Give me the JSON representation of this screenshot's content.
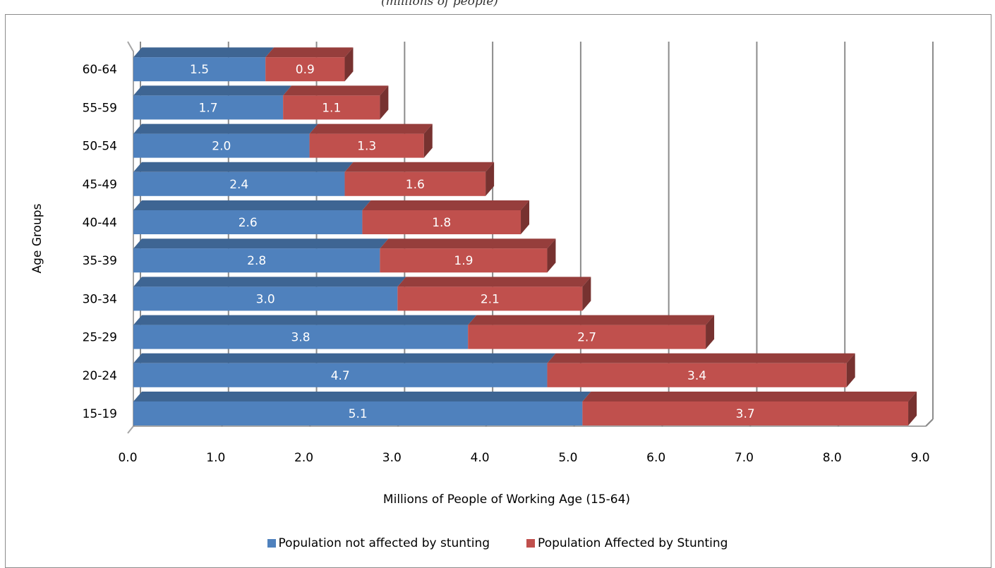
{
  "top_text": "(millions of people)",
  "chart_data": {
    "type": "bar",
    "orientation": "horizontal",
    "stacked": true,
    "categories": [
      "15-19",
      "20-24",
      "25-29",
      "30-34",
      "35-39",
      "40-44",
      "45-49",
      "50-54",
      "55-59",
      "60-64"
    ],
    "series": [
      {
        "name": "Population not affected by stunting",
        "color": "#4f81bd",
        "values": [
          5.1,
          4.7,
          3.8,
          3.0,
          2.8,
          2.6,
          2.4,
          2.0,
          1.7,
          1.5
        ]
      },
      {
        "name": "Population Affected by Stunting",
        "color": "#c0504d",
        "values": [
          3.7,
          3.4,
          2.7,
          2.1,
          1.9,
          1.8,
          1.6,
          1.3,
          1.1,
          0.9
        ]
      }
    ],
    "x_ticks": [
      "0.0",
      "1.0",
      "2.0",
      "3.0",
      "4.0",
      "5.0",
      "6.0",
      "7.0",
      "8.0",
      "9.0"
    ],
    "xlim": [
      0,
      9
    ],
    "xlabel": "Millions of People of Working Age (15-64)",
    "ylabel": "Age Groups",
    "grid": "vertical",
    "legend": "bottom",
    "three_d": true
  }
}
